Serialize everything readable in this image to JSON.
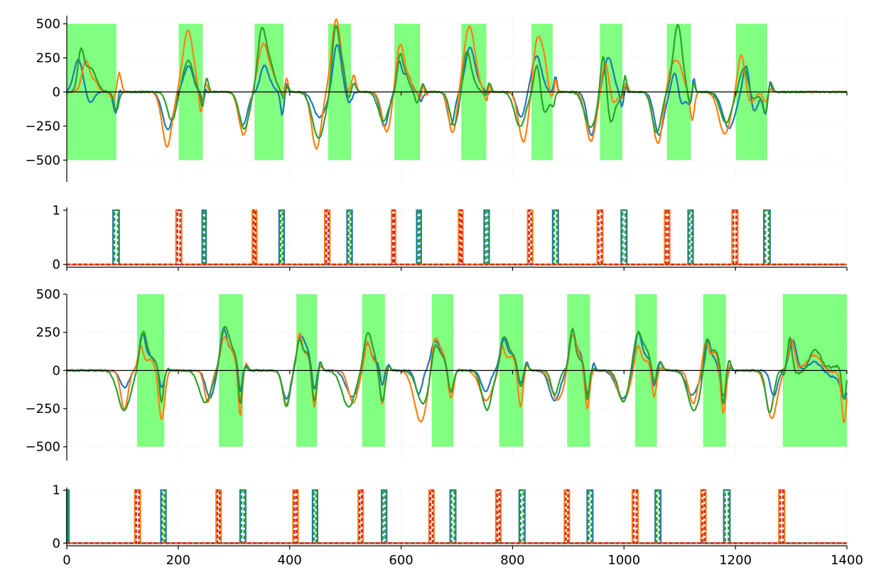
{
  "chart_data": [
    {
      "type": "line",
      "xlim": [
        0,
        1400
      ],
      "ylim": [
        -660,
        560
      ],
      "yticks": [
        {
          "value": 500,
          "label": "500"
        },
        {
          "value": 250,
          "label": "250"
        },
        {
          "value": 0,
          "label": "0"
        },
        {
          "value": -250,
          "label": "−250"
        },
        {
          "value": -500,
          "label": "−500"
        }
      ],
      "xticks": [
        0,
        200,
        400,
        600,
        800,
        1000,
        1200,
        1400
      ],
      "show_xtick_labels": false,
      "grid": true,
      "zero_line": true,
      "shaded_regions": [
        [
          0,
          89
        ],
        [
          201,
          244
        ],
        [
          337,
          389
        ],
        [
          469,
          510
        ],
        [
          588,
          634
        ],
        [
          708,
          753
        ],
        [
          834,
          872
        ],
        [
          957,
          997
        ],
        [
          1077,
          1120
        ],
        [
          1201,
          1257
        ]
      ],
      "shade_range": [
        -500,
        500
      ],
      "shade_color": "#80ff80",
      "series": [
        {
          "color": "#1f77b4",
          "ratio": 0.55,
          "pos": 250,
          "neg": -320,
          "offsets": [
            null,
            0.1,
            0.75,
            0.85,
            0.8,
            0.85,
            0.85,
            0.85,
            0.8,
            0.75
          ],
          "x": [
            0,
            10,
            20,
            30,
            40,
            45,
            50,
            55,
            60,
            70,
            80,
            90,
            95,
            100
          ]
        },
        {
          "color": "#ff7f0e",
          "ratio": 0.6,
          "pos": 380,
          "neg": -420,
          "offsets": [
            null,
            0.85,
            0.8,
            0.55,
            0.55,
            0.35,
            0.35,
            0.35,
            0.45,
            0.45
          ],
          "x": [
            0,
            15,
            25,
            30,
            40,
            60
          ]
        },
        {
          "color": "#2ca02c",
          "ratio": 0.5,
          "pos": 320,
          "neg": -360,
          "offsets": [
            null,
            0.9,
            0.9,
            0.9,
            0.9,
            0.8,
            0.8,
            0.7,
            0.8,
            0.75
          ],
          "x": [
            0,
            20,
            35,
            45,
            60,
            70,
            80,
            90
          ]
        }
      ]
    },
    {
      "type": "step",
      "xlim": [
        0,
        1400
      ],
      "ylim": [
        -0.05,
        1.05
      ],
      "yticks": [
        {
          "value": 1,
          "label": "1"
        },
        {
          "value": 0,
          "label": "0"
        }
      ],
      "xticks": [
        0,
        200,
        400,
        600,
        800,
        1000,
        1200,
        1400
      ],
      "show_xtick_labels": false,
      "grid": true,
      "pulses": {
        "blue_green": [
          [
            83,
            94
          ],
          [
            243,
            250
          ],
          [
            381,
            390
          ],
          [
            503,
            512
          ],
          [
            628,
            636
          ],
          [
            749,
            758
          ],
          [
            872,
            882
          ],
          [
            995,
            1005
          ],
          [
            1115,
            1124
          ],
          [
            1251,
            1262
          ]
        ],
        "orange_red": [
          [
            196,
            206
          ],
          [
            333,
            341
          ],
          [
            463,
            472
          ],
          [
            583,
            590
          ],
          [
            703,
            711
          ],
          [
            827,
            836
          ],
          [
            952,
            962
          ],
          [
            1073,
            1082
          ],
          [
            1194,
            1204
          ]
        ]
      },
      "series": [
        {
          "name": "",
          "color": "#1f77b4",
          "style": "solid"
        },
        {
          "name": "",
          "color": "#ff7f0e",
          "style": "solid"
        },
        {
          "name": "",
          "color": "#2ca02c",
          "style": "dashed"
        },
        {
          "name": "",
          "color": "#d62728",
          "style": "dashed"
        }
      ]
    },
    {
      "type": "line",
      "xlim": [
        0,
        1400
      ],
      "ylim": [
        -590,
        500
      ],
      "yticks": [
        {
          "value": 500,
          "label": "500"
        },
        {
          "value": 250,
          "label": "250"
        },
        {
          "value": 0,
          "label": "0"
        },
        {
          "value": -250,
          "label": "−250"
        },
        {
          "value": -500,
          "label": "−500"
        }
      ],
      "xticks": [
        0,
        200,
        400,
        600,
        800,
        1000,
        1200,
        1400
      ],
      "show_xtick_labels": false,
      "grid": true,
      "zero_line": true,
      "shaded_regions": [
        [
          126,
          175
        ],
        [
          273,
          316
        ],
        [
          412,
          449
        ],
        [
          530,
          571
        ],
        [
          655,
          694
        ],
        [
          776,
          819
        ],
        [
          898,
          939
        ],
        [
          1020,
          1059
        ],
        [
          1142,
          1183
        ],
        [
          1285,
          1400
        ]
      ],
      "shade_range": [
        -500,
        500
      ],
      "shade_color": "#80ff80",
      "series": [
        {
          "color": "#1f77b4",
          "pos": 220,
          "neg": -200
        },
        {
          "color": "#ff7f0e",
          "pos": 200,
          "neg": -340
        },
        {
          "color": "#2ca02c",
          "pos": 240,
          "neg": -280
        }
      ]
    },
    {
      "type": "step",
      "xlim": [
        0,
        1400
      ],
      "ylim": [
        -0.05,
        1.05
      ],
      "yticks": [
        {
          "value": 1,
          "label": "1"
        },
        {
          "value": 0,
          "label": "0"
        }
      ],
      "xticks": [
        0,
        200,
        400,
        600,
        800,
        1000,
        1200,
        1400
      ],
      "xtick_labels": [
        "0",
        "200",
        "400",
        "600",
        "800",
        "1000",
        "1200",
        "1400"
      ],
      "show_xtick_labels": true,
      "grid": true,
      "pulses": {
        "blue_green": [
          [
            0,
            4
          ],
          [
            169,
            178
          ],
          [
            311,
            321
          ],
          [
            441,
            450
          ],
          [
            565,
            574
          ],
          [
            688,
            698
          ],
          [
            812,
            822
          ],
          [
            934,
            944
          ],
          [
            1056,
            1066
          ],
          [
            1179,
            1190
          ]
        ],
        "orange_red": [
          [
            122,
            132
          ],
          [
            268,
            277
          ],
          [
            406,
            415
          ],
          [
            523,
            532
          ],
          [
            650,
            659
          ],
          [
            770,
            779
          ],
          [
            893,
            902
          ],
          [
            1015,
            1025
          ],
          [
            1138,
            1147
          ],
          [
            1278,
            1288
          ]
        ]
      },
      "series": [
        {
          "name": "",
          "color": "#1f77b4",
          "style": "solid"
        },
        {
          "name": "",
          "color": "#ff7f0e",
          "style": "solid"
        },
        {
          "name": "",
          "color": "#2ca02c",
          "style": "dashed"
        },
        {
          "name": "",
          "color": "#d62728",
          "style": "dashed"
        }
      ]
    }
  ]
}
